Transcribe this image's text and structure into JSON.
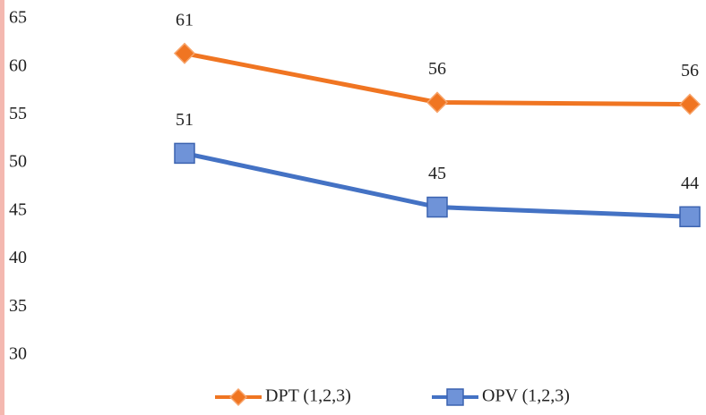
{
  "chart_data": {
    "type": "line",
    "categories": [
      null,
      null,
      null
    ],
    "series": [
      {
        "name": "DPT (1,2,3)",
        "color": "#f07522",
        "marker": "diamond",
        "values": [
          61.4,
          56.3,
          56.1
        ],
        "value_labels": [
          "61",
          "56",
          "56"
        ]
      },
      {
        "name": "OPV (1,2,3)",
        "color": "#4472c4",
        "marker": "square",
        "values": [
          51,
          45.4,
          44.4
        ],
        "value_labels": [
          "51",
          "45",
          "44"
        ]
      }
    ],
    "ylim": [
      30,
      65
    ],
    "yticks": [
      30,
      35,
      40,
      45,
      50,
      55,
      60,
      65
    ],
    "grid": false,
    "legend": "bottom"
  }
}
